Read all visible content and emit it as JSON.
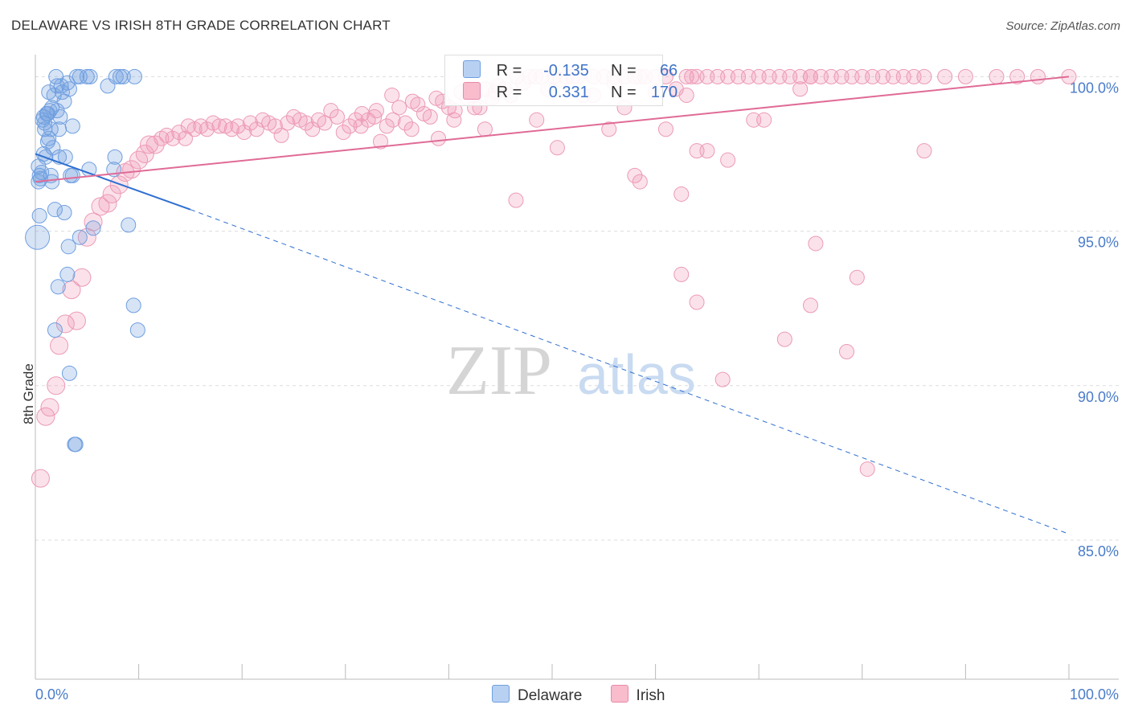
{
  "title": "DELAWARE VS IRISH 8TH GRADE CORRELATION CHART",
  "source": "Source: ZipAtlas.com",
  "watermark": "ZIPatlas",
  "legend_top": {
    "rows": [
      {
        "r_label": "R =",
        "r_value": "-0.135",
        "n_label": "N =",
        "n_value": "66"
      },
      {
        "r_label": "R =",
        "r_value": "0.331",
        "n_label": "N =",
        "n_value": "170"
      }
    ]
  },
  "legend_bottom": [
    "Delaware",
    "Irish"
  ],
  "colors": {
    "delaware": "#6f9fe0",
    "irish": "#e889a8",
    "delaware_line": "#2f6fd0",
    "irish_line": "#e06b96",
    "tick": "#4a7cc9"
  },
  "chart_data": {
    "type": "scatter",
    "title": "DELAWARE VS IRISH 8TH GRADE CORRELATION CHART",
    "xlabel": "",
    "ylabel": "8th Grade",
    "xlim": [
      0,
      100
    ],
    "ylim": [
      80.5,
      100.4
    ],
    "x_tick_labels": [
      "0.0%",
      "100.0%"
    ],
    "y_ticks": [
      85,
      90,
      95,
      100
    ],
    "y_tick_labels": [
      "85.0%",
      "90.0%",
      "95.0%",
      "100.0%"
    ],
    "series": [
      {
        "name": "Delaware",
        "r": -0.135,
        "n": 66,
        "trend": {
          "x0": 0,
          "y0": 97.5,
          "x1": 15,
          "y1": 95.7,
          "dash_to_x": 100,
          "dash_to_y": 85.2
        },
        "points": [
          [
            0.2,
            94.8
          ],
          [
            0.3,
            96.6
          ],
          [
            0.3,
            97.1
          ],
          [
            0.4,
            96.8
          ],
          [
            0.4,
            95.5
          ],
          [
            0.5,
            96.7
          ],
          [
            0.8,
            97.5
          ],
          [
            0.8,
            98.7
          ],
          [
            0.9,
            98.3
          ],
          [
            0.9,
            98.5
          ],
          [
            1.1,
            98.8
          ],
          [
            1.2,
            97.9
          ],
          [
            1.2,
            98.8
          ],
          [
            1.3,
            99.5
          ],
          [
            1.4,
            98.9
          ],
          [
            1.5,
            98.3
          ],
          [
            1.5,
            96.8
          ],
          [
            1.6,
            99.0
          ],
          [
            1.7,
            97.7
          ],
          [
            1.8,
            99.4
          ],
          [
            1.9,
            95.7
          ],
          [
            1.9,
            91.8
          ],
          [
            2.0,
            100.0
          ],
          [
            2.1,
            98.9
          ],
          [
            2.1,
            99.7
          ],
          [
            2.2,
            93.2
          ],
          [
            2.3,
            97.4
          ],
          [
            2.3,
            98.3
          ],
          [
            2.5,
            99.7
          ],
          [
            2.6,
            99.5
          ],
          [
            2.8,
            99.2
          ],
          [
            2.8,
            95.6
          ],
          [
            2.9,
            97.4
          ],
          [
            3.1,
            93.6
          ],
          [
            3.2,
            94.5
          ],
          [
            3.3,
            99.6
          ],
          [
            3.3,
            90.4
          ],
          [
            3.4,
            96.8
          ],
          [
            3.6,
            96.8
          ],
          [
            3.6,
            98.4
          ],
          [
            3.8,
            88.1
          ],
          [
            3.9,
            88.1
          ],
          [
            4.0,
            100.0
          ],
          [
            4.3,
            100.0
          ],
          [
            4.3,
            94.8
          ],
          [
            5.0,
            100.0
          ],
          [
            5.3,
            100.0
          ],
          [
            5.6,
            95.1
          ],
          [
            5.2,
            97.0
          ],
          [
            7.0,
            99.7
          ],
          [
            7.8,
            100.0
          ],
          [
            7.6,
            97.0
          ],
          [
            7.7,
            97.4
          ],
          [
            8.2,
            100.0
          ],
          [
            8.5,
            100.0
          ],
          [
            9.0,
            95.2
          ],
          [
            9.6,
            100.0
          ],
          [
            9.5,
            92.6
          ],
          [
            9.9,
            91.8
          ],
          [
            1.0,
            97.4
          ],
          [
            1.6,
            96.6
          ],
          [
            0.6,
            96.9
          ],
          [
            2.4,
            98.7
          ],
          [
            3.1,
            99.8
          ],
          [
            1.3,
            98.0
          ],
          [
            0.7,
            98.6
          ]
        ]
      },
      {
        "name": "Irish",
        "r": 0.331,
        "n": 170,
        "trend": {
          "x0": 0,
          "y0": 96.6,
          "x1": 100,
          "y1": 100.0
        },
        "points": [
          [
            0.5,
            87.0
          ],
          [
            1.0,
            89.0
          ],
          [
            1.4,
            89.3
          ],
          [
            2.0,
            90.0
          ],
          [
            2.3,
            91.3
          ],
          [
            2.9,
            92.0
          ],
          [
            3.5,
            93.1
          ],
          [
            4.5,
            93.5
          ],
          [
            4.0,
            92.1
          ],
          [
            5.0,
            94.8
          ],
          [
            5.6,
            95.3
          ],
          [
            6.3,
            95.8
          ],
          [
            7.0,
            95.9
          ],
          [
            7.4,
            96.2
          ],
          [
            8.1,
            96.5
          ],
          [
            8.7,
            96.9
          ],
          [
            9.3,
            97.0
          ],
          [
            10.0,
            97.3
          ],
          [
            10.6,
            97.5
          ],
          [
            11.0,
            97.8
          ],
          [
            11.6,
            97.8
          ],
          [
            12.2,
            98.0
          ],
          [
            12.7,
            98.1
          ],
          [
            13.3,
            98.0
          ],
          [
            13.9,
            98.2
          ],
          [
            14.5,
            98.0
          ],
          [
            14.8,
            98.4
          ],
          [
            15.4,
            98.3
          ],
          [
            16.0,
            98.4
          ],
          [
            16.6,
            98.3
          ],
          [
            17.2,
            98.5
          ],
          [
            17.8,
            98.4
          ],
          [
            18.4,
            98.4
          ],
          [
            19.0,
            98.3
          ],
          [
            19.6,
            98.4
          ],
          [
            20.2,
            98.2
          ],
          [
            20.8,
            98.5
          ],
          [
            21.4,
            98.3
          ],
          [
            22.0,
            98.6
          ],
          [
            22.6,
            98.5
          ],
          [
            23.2,
            98.4
          ],
          [
            23.8,
            98.1
          ],
          [
            24.4,
            98.5
          ],
          [
            25.0,
            98.7
          ],
          [
            25.6,
            98.6
          ],
          [
            26.2,
            98.5
          ],
          [
            26.8,
            98.3
          ],
          [
            27.4,
            98.6
          ],
          [
            28.0,
            98.5
          ],
          [
            28.6,
            98.9
          ],
          [
            29.2,
            98.7
          ],
          [
            29.8,
            98.2
          ],
          [
            30.4,
            98.4
          ],
          [
            31.0,
            98.6
          ],
          [
            31.6,
            98.8
          ],
          [
            32.2,
            98.6
          ],
          [
            32.8,
            98.7
          ],
          [
            33.4,
            97.9
          ],
          [
            34.0,
            98.4
          ],
          [
            34.6,
            98.6
          ],
          [
            35.2,
            99.0
          ],
          [
            35.8,
            98.5
          ],
          [
            36.4,
            98.3
          ],
          [
            37.0,
            99.1
          ],
          [
            37.6,
            98.8
          ],
          [
            38.2,
            98.7
          ],
          [
            38.8,
            99.3
          ],
          [
            39.4,
            99.2
          ],
          [
            40.0,
            99.0
          ],
          [
            40.6,
            98.9
          ],
          [
            41.2,
            99.5
          ],
          [
            41.8,
            99.3
          ],
          [
            42.4,
            99.4
          ],
          [
            43.0,
            99.0
          ],
          [
            43.6,
            99.6
          ],
          [
            44.2,
            99.3
          ],
          [
            44.8,
            99.7
          ],
          [
            45.4,
            99.6
          ],
          [
            46.0,
            99.4
          ],
          [
            46.6,
            100.0
          ],
          [
            47.2,
            99.8
          ],
          [
            47.8,
            100.0
          ],
          [
            48.4,
            100.0
          ],
          [
            49.0,
            100.0
          ],
          [
            49.6,
            99.6
          ],
          [
            50.2,
            100.0
          ],
          [
            50.8,
            99.9
          ],
          [
            51.4,
            100.0
          ],
          [
            52.0,
            100.0
          ],
          [
            53.0,
            99.4
          ],
          [
            54.0,
            100.0
          ],
          [
            55.0,
            100.0
          ],
          [
            56.0,
            100.0
          ],
          [
            57.0,
            100.0
          ],
          [
            58.0,
            100.0
          ],
          [
            59.0,
            100.0
          ],
          [
            60.0,
            100.0
          ],
          [
            61.0,
            100.0
          ],
          [
            62.0,
            99.6
          ],
          [
            63.0,
            100.0
          ],
          [
            64.0,
            100.0
          ],
          [
            65.0,
            100.0
          ],
          [
            66.0,
            100.0
          ],
          [
            67.0,
            100.0
          ],
          [
            68.0,
            100.0
          ],
          [
            69.0,
            100.0
          ],
          [
            70.0,
            100.0
          ],
          [
            71.0,
            100.0
          ],
          [
            72.0,
            100.0
          ],
          [
            73.0,
            100.0
          ],
          [
            74.0,
            100.0
          ],
          [
            75.0,
            100.0
          ],
          [
            76.0,
            100.0
          ],
          [
            77.0,
            100.0
          ],
          [
            78.0,
            100.0
          ],
          [
            79.0,
            100.0
          ],
          [
            80.0,
            100.0
          ],
          [
            81.0,
            100.0
          ],
          [
            82.0,
            100.0
          ],
          [
            83.0,
            100.0
          ],
          [
            84.0,
            100.0
          ],
          [
            85.0,
            100.0
          ],
          [
            86.0,
            100.0
          ],
          [
            88.0,
            100.0
          ],
          [
            90.0,
            100.0
          ],
          [
            93.0,
            100.0
          ],
          [
            95.0,
            100.0
          ],
          [
            100.0,
            100.0
          ],
          [
            97.0,
            100.0
          ],
          [
            74.0,
            99.6
          ],
          [
            75.0,
            100.0
          ],
          [
            63.5,
            100.0
          ],
          [
            52.5,
            100.0
          ],
          [
            58.5,
            100.0
          ],
          [
            43.5,
            98.3
          ],
          [
            46.5,
            96.0
          ],
          [
            48.5,
            98.6
          ],
          [
            50.5,
            97.7
          ],
          [
            55.5,
            98.3
          ],
          [
            58.0,
            96.8
          ],
          [
            61.0,
            98.3
          ],
          [
            58.5,
            96.6
          ],
          [
            62.5,
            96.2
          ],
          [
            64.0,
            97.6
          ],
          [
            65.0,
            97.6
          ],
          [
            67.0,
            97.3
          ],
          [
            69.5,
            98.6
          ],
          [
            70.5,
            98.6
          ],
          [
            56.0,
            99.8
          ],
          [
            60.0,
            99.5
          ],
          [
            63.0,
            99.4
          ],
          [
            75.5,
            94.6
          ],
          [
            79.5,
            93.5
          ],
          [
            75.0,
            92.6
          ],
          [
            72.5,
            91.5
          ],
          [
            64.0,
            92.7
          ],
          [
            62.5,
            93.6
          ],
          [
            78.5,
            91.1
          ],
          [
            66.5,
            90.2
          ],
          [
            80.5,
            87.3
          ],
          [
            86.0,
            97.6
          ],
          [
            44.5,
            99.5
          ],
          [
            42.5,
            99.0
          ],
          [
            40.5,
            98.6
          ],
          [
            39.0,
            98.0
          ],
          [
            36.5,
            99.2
          ],
          [
            34.5,
            99.4
          ],
          [
            33.0,
            98.9
          ],
          [
            31.5,
            98.4
          ],
          [
            54.0,
            99.4
          ],
          [
            57.0,
            99.0
          ]
        ]
      }
    ]
  }
}
